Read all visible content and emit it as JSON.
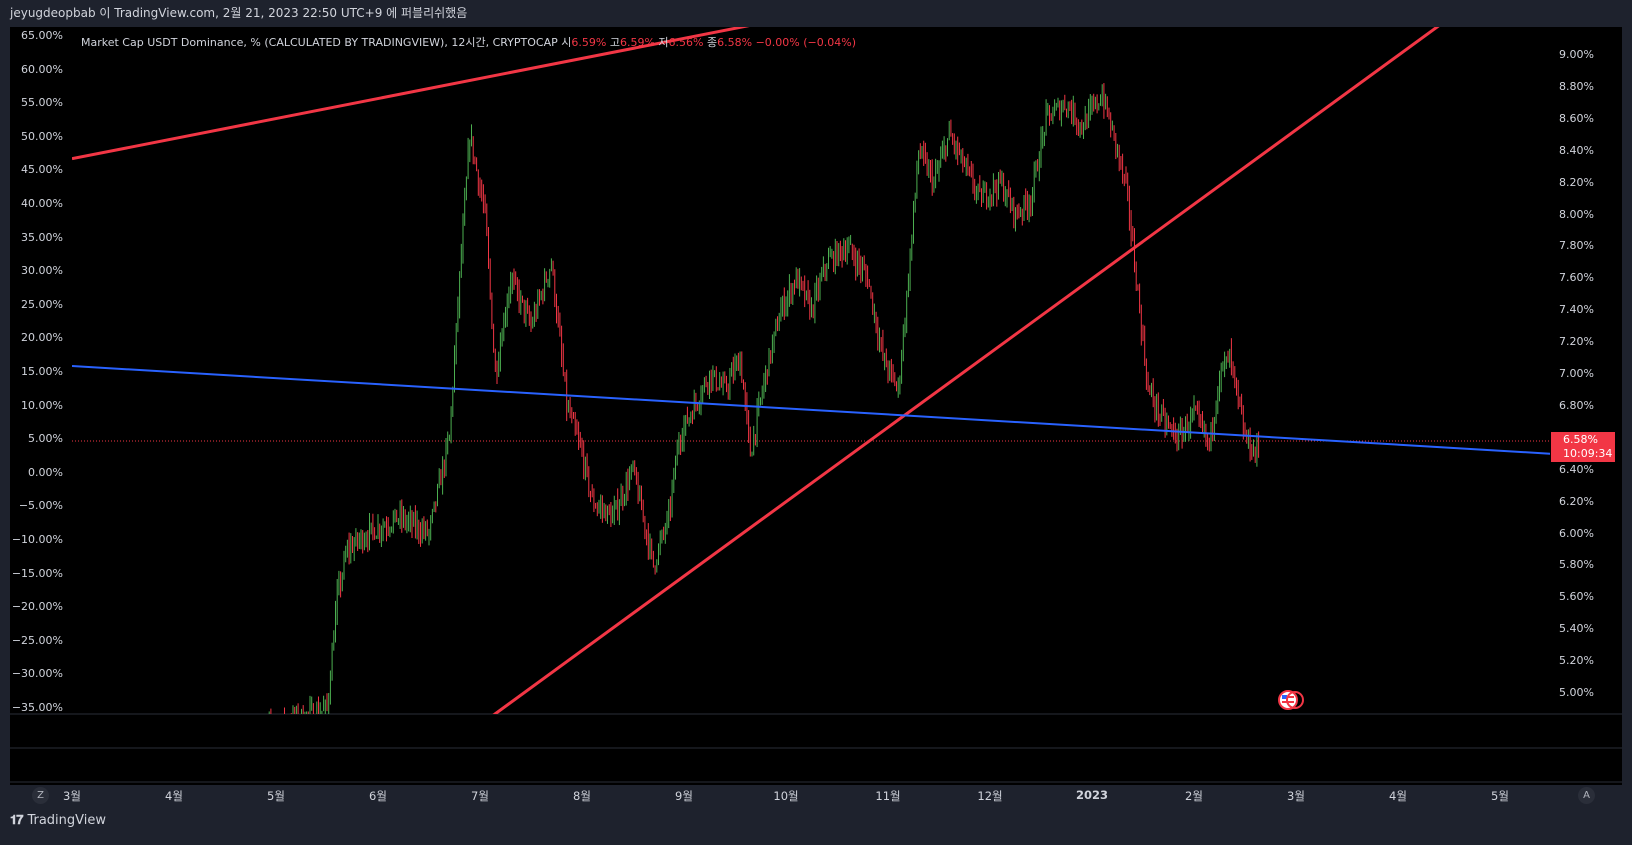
{
  "header": {
    "publisher_text": "jeyugdeopbab 이 TradingView.com, 2월 21, 2023 22:50 UTC+9 에 퍼블리쉬했음"
  },
  "legend": {
    "symbol_text": "Market Cap USDT Dominance, % (CALCULATED BY TRADINGVIEW), 12시간, CRYPTOCAP",
    "open_label": "시",
    "open_value": "6.59%",
    "high_label": "고",
    "high_value": "6.59%",
    "low_label": "저",
    "low_value": "6.56%",
    "close_label": "종",
    "close_value": "6.58%",
    "change_value": "−0.00% (−0.04%)"
  },
  "price_badge": {
    "price": "6.58%",
    "countdown": "10:09:34"
  },
  "footer": {
    "brand": "TradingView",
    "left_button": "Z",
    "right_button": "A"
  },
  "colors": {
    "up": "#26a69a",
    "candle_up": "#4caf50",
    "candle_down": "#f23645",
    "trendline_red": "#f23645",
    "trendline_blue": "#2962ff",
    "background": "#000000"
  },
  "chart_data": {
    "type": "candlestick",
    "title": "Market Cap USDT Dominance, % (CALCULATED BY TRADINGVIEW), 12시간, CRYPTOCAP",
    "left_axis_ticks": [
      "65.00%",
      "60.00%",
      "55.00%",
      "50.00%",
      "45.00%",
      "40.00%",
      "35.00%",
      "30.00%",
      "25.00%",
      "20.00%",
      "15.00%",
      "10.00%",
      "5.00%",
      "0.00%",
      "−5.00%",
      "−10.00%",
      "−15.00%",
      "−20.00%",
      "−25.00%",
      "−30.00%",
      "−35.00%"
    ],
    "right_axis_ticks": [
      "9.00%",
      "8.80%",
      "8.60%",
      "8.40%",
      "8.20%",
      "8.00%",
      "7.80%",
      "7.60%",
      "7.40%",
      "7.20%",
      "7.00%",
      "6.80%",
      "6.60%",
      "6.40%",
      "6.20%",
      "6.00%",
      "5.80%",
      "5.60%",
      "5.40%",
      "5.20%",
      "5.00%"
    ],
    "x_axis_ticks": [
      "3월",
      "4월",
      "5월",
      "6월",
      "7월",
      "8월",
      "9월",
      "10월",
      "11월",
      "12월",
      "2023",
      "2월",
      "3월",
      "4월",
      "5월"
    ],
    "right_ylim": [
      4.85,
      9.2
    ],
    "last_price": 6.58,
    "x_months": [
      2.7,
      3.7,
      4.7,
      5.7,
      6.7,
      7.7,
      8.7,
      9.7,
      10.7,
      11.7,
      12.7,
      13.7,
      14.7,
      15.7,
      16.7
    ],
    "price_path": [
      [
        4.5,
        4.75
      ],
      [
        5.2,
        4.9
      ],
      [
        5.3,
        5.6
      ],
      [
        5.4,
        5.9
      ],
      [
        5.6,
        6.0
      ],
      [
        5.9,
        6.1
      ],
      [
        6.2,
        6.0
      ],
      [
        6.4,
        6.6
      ],
      [
        6.5,
        7.6
      ],
      [
        6.6,
        8.5
      ],
      [
        6.75,
        8.0
      ],
      [
        6.85,
        7.0
      ],
      [
        7.0,
        7.6
      ],
      [
        7.2,
        7.3
      ],
      [
        7.4,
        7.7
      ],
      [
        7.55,
        6.8
      ],
      [
        7.7,
        6.5
      ],
      [
        7.8,
        6.2
      ],
      [
        8.0,
        6.1
      ],
      [
        8.2,
        6.4
      ],
      [
        8.4,
        5.8
      ],
      [
        8.55,
        6.1
      ],
      [
        8.65,
        6.6
      ],
      [
        8.8,
        6.8
      ],
      [
        8.95,
        7.0
      ],
      [
        9.1,
        6.9
      ],
      [
        9.25,
        7.1
      ],
      [
        9.35,
        6.5
      ],
      [
        9.5,
        7.0
      ],
      [
        9.65,
        7.4
      ],
      [
        9.8,
        7.6
      ],
      [
        9.95,
        7.4
      ],
      [
        10.1,
        7.7
      ],
      [
        10.3,
        7.8
      ],
      [
        10.5,
        7.6
      ],
      [
        10.65,
        7.1
      ],
      [
        10.8,
        6.9
      ],
      [
        10.9,
        7.6
      ],
      [
        11.0,
        8.4
      ],
      [
        11.15,
        8.2
      ],
      [
        11.3,
        8.5
      ],
      [
        11.45,
        8.3
      ],
      [
        11.6,
        8.1
      ],
      [
        11.8,
        8.2
      ],
      [
        11.95,
        8.0
      ],
      [
        12.1,
        8.1
      ],
      [
        12.25,
        8.6
      ],
      [
        12.45,
        8.7
      ],
      [
        12.6,
        8.55
      ],
      [
        12.8,
        8.75
      ],
      [
        12.95,
        8.4
      ],
      [
        13.05,
        8.1
      ],
      [
        13.15,
        7.5
      ],
      [
        13.25,
        6.9
      ],
      [
        13.4,
        6.7
      ],
      [
        13.55,
        6.6
      ],
      [
        13.7,
        6.75
      ],
      [
        13.85,
        6.55
      ],
      [
        13.95,
        7.0
      ],
      [
        14.05,
        7.1
      ],
      [
        14.2,
        6.6
      ],
      [
        14.3,
        6.5
      ],
      [
        14.35,
        6.58
      ]
    ],
    "trendlines": [
      {
        "color": "red",
        "from": [
          2.7,
          8.35
        ],
        "to": [
          9.7,
          9.23
        ]
      },
      {
        "color": "red",
        "from": [
          6.7,
          4.8
        ],
        "to": [
          16.2,
          9.23
        ]
      },
      {
        "color": "blue",
        "from": [
          2.7,
          7.05
        ],
        "to": [
          17.2,
          6.5
        ]
      }
    ]
  }
}
